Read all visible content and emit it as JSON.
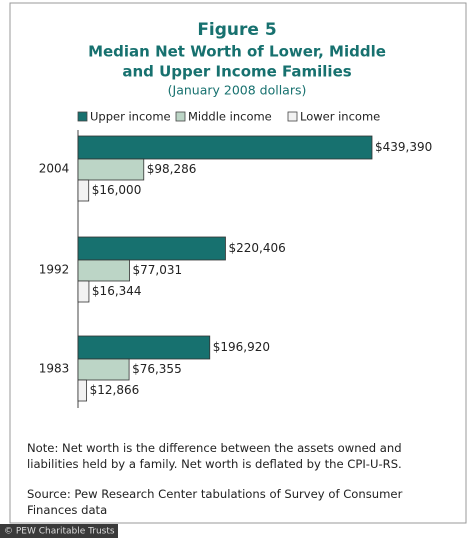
{
  "chart_data": {
    "type": "bar",
    "orientation": "horizontal",
    "title": "Figure 5",
    "subtitle": [
      "Median Net Worth of Lower, Middle",
      "and Upper Income Families"
    ],
    "units_note": "(January 2008 dollars)",
    "categories": [
      "2004",
      "1992",
      "1983"
    ],
    "series": [
      {
        "name": "Upper income",
        "color": "#17716f",
        "values": [
          439390,
          220406,
          196920
        ],
        "value_labels": [
          "$439,390",
          "$220,406",
          "$196,920"
        ]
      },
      {
        "name": "Middle income",
        "color": "#bcd5c6",
        "values": [
          98286,
          77031,
          76355
        ],
        "value_labels": [
          "$98,286",
          "$77,031",
          "$76,355"
        ]
      },
      {
        "name": "Lower income",
        "color": "#f2f2f2",
        "values": [
          16000,
          16344,
          12866
        ],
        "value_labels": [
          "$16,000",
          "$16,344",
          "$12,866"
        ]
      }
    ],
    "note": "Note: Net worth is the difference between the assets owned and liabilities held by a family. Net worth is deflated by the CPI-U-RS.",
    "source": "Source: Pew Research Center tabulations of Survey of Consumer Finances data",
    "watermark": "© PEW Charitable Trusts"
  }
}
